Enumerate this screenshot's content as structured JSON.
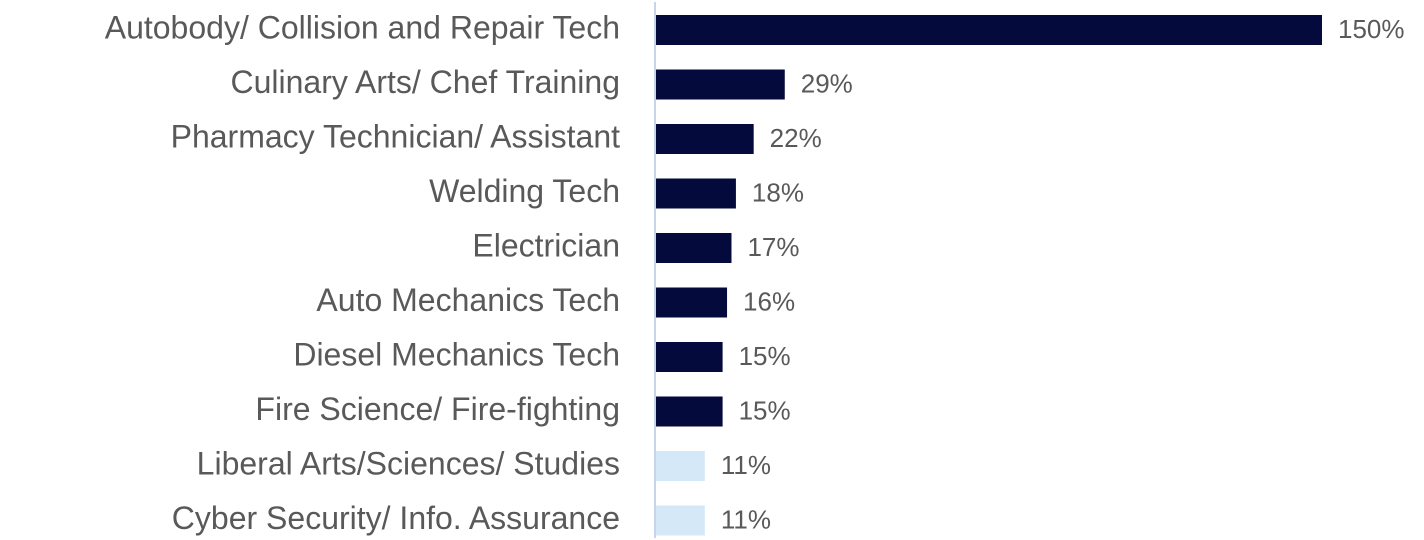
{
  "chart_data": {
    "type": "barh",
    "categories": [
      "Autobody/ Collision and Repair Tech",
      "Culinary Arts/ Chef Training",
      "Pharmacy Technician/ Assistant",
      "Welding Tech",
      "Electrician",
      "Auto Mechanics Tech",
      "Diesel Mechanics Tech",
      "Fire Science/ Fire-fighting",
      "Liberal Arts/Sciences/ Studies",
      "Cyber Security/ Info. Assurance"
    ],
    "values": [
      150,
      29,
      22,
      18,
      17,
      16,
      15,
      15,
      11,
      11
    ],
    "value_labels": [
      "150%",
      "29%",
      "22%",
      "18%",
      "17%",
      "16%",
      "15%",
      "15%",
      "11%",
      "11%"
    ],
    "colors": [
      "#050a3c",
      "#050a3c",
      "#050a3c",
      "#050a3c",
      "#050a3c",
      "#050a3c",
      "#050a3c",
      "#050a3c",
      "#d5e8f8",
      "#d5e8f8"
    ]
  }
}
